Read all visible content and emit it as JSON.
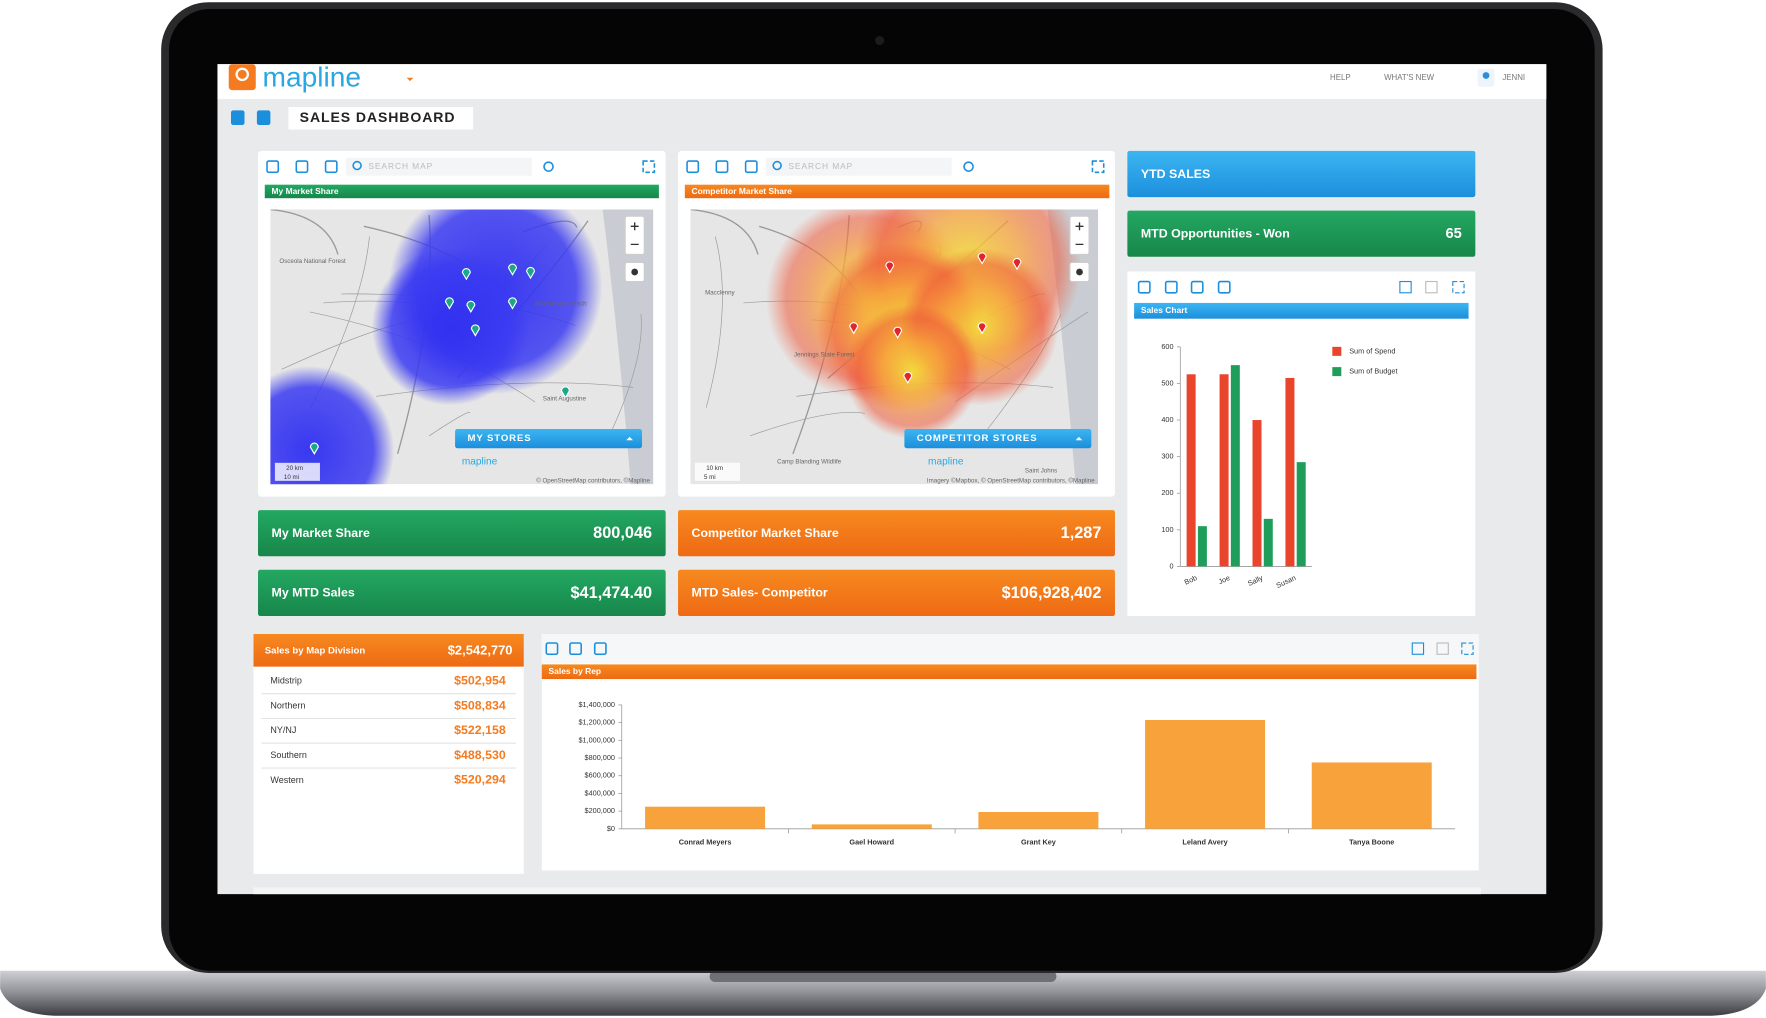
{
  "header": {
    "logo": "mapline",
    "nav": [
      "HELP",
      "WHAT'S NEW",
      "JENNI"
    ]
  },
  "toolbar": {
    "title": "SALES DASHBOARD"
  },
  "maps": [
    {
      "title": "My Market Share",
      "search": "SEARCH MAP",
      "layer_button": "MY STORES",
      "places": [
        "Osceola National Forest",
        "Jacksonville Beach",
        "Saint Augustine"
      ],
      "scale": [
        "20 km",
        "10 mi"
      ],
      "attribution": "© OpenStreetMap contributors, ©Mapline"
    },
    {
      "title": "Competitor Market Share",
      "search": "SEARCH MAP",
      "layer_button": "COMPETITOR STORES",
      "places": [
        "Macclenny",
        "Jennings State Forest",
        "Camp Blanding Wildlife",
        "Saint Johns"
      ],
      "scale": [
        "10 km",
        "5 mi"
      ],
      "attribution": "Imagery ©Mapbox, © OpenStreetMap contributors, ©Mapline"
    }
  ],
  "tiles": [
    {
      "label": "YTD SALES"
    },
    {
      "label": "MTD Opportunities - Won",
      "value": "65"
    },
    {
      "label": "My Market Share",
      "value": "800,046"
    },
    {
      "label": "Competitor Market Share",
      "value": "1,287"
    },
    {
      "label": "My MTD Sales",
      "value": "$41,474.40"
    },
    {
      "label": "MTD Sales- Competitor",
      "value": "$106,928,402"
    }
  ],
  "division_table": {
    "title": "Sales by Map Division",
    "total": "$2,542,770",
    "rows": [
      [
        "Midstrip",
        "$502,954"
      ],
      [
        "Northern",
        "$508,834"
      ],
      [
        "NY/NJ",
        "$522,158"
      ],
      [
        "Southern",
        "$488,530"
      ],
      [
        "Western",
        "$520,294"
      ]
    ]
  },
  "chart_data": [
    {
      "type": "bar",
      "title": "Sales Chart",
      "categories": [
        "Bob",
        "Joe",
        "Sally",
        "Susan"
      ],
      "series": [
        {
          "name": "Sum of Spend",
          "color": "#e8452c",
          "values": [
            525,
            525,
            400,
            515
          ]
        },
        {
          "name": "Sum of Budget",
          "color": "#1e9e5a",
          "values": [
            110,
            550,
            130,
            285
          ]
        }
      ],
      "ylim": [
        0,
        600
      ],
      "yticks": [
        0,
        100,
        200,
        300,
        400,
        500,
        600
      ],
      "grid": false
    },
    {
      "type": "bar",
      "title": "Sales by Rep",
      "categories": [
        "Conrad Meyers",
        "Gael Howard",
        "Grant Key",
        "Leland Avery",
        "Tanya Boone"
      ],
      "values": [
        250000,
        50000,
        190000,
        1230000,
        750000
      ],
      "color": "#f7a23b",
      "ylim": [
        0,
        1400000
      ],
      "yticks": [
        {
          "value": 0,
          "label": "$0"
        },
        {
          "value": 200000,
          "label": "$200,000"
        },
        {
          "value": 400000,
          "label": "$400,000"
        },
        {
          "value": 600000,
          "label": "$600,000"
        },
        {
          "value": 800000,
          "label": "$800,000"
        },
        {
          "value": 1000000,
          "label": "$1,000,000"
        },
        {
          "value": 1200000,
          "label": "$1,200,000"
        },
        {
          "value": 1400000,
          "label": "$1,400,000"
        }
      ],
      "grid": false
    }
  ]
}
